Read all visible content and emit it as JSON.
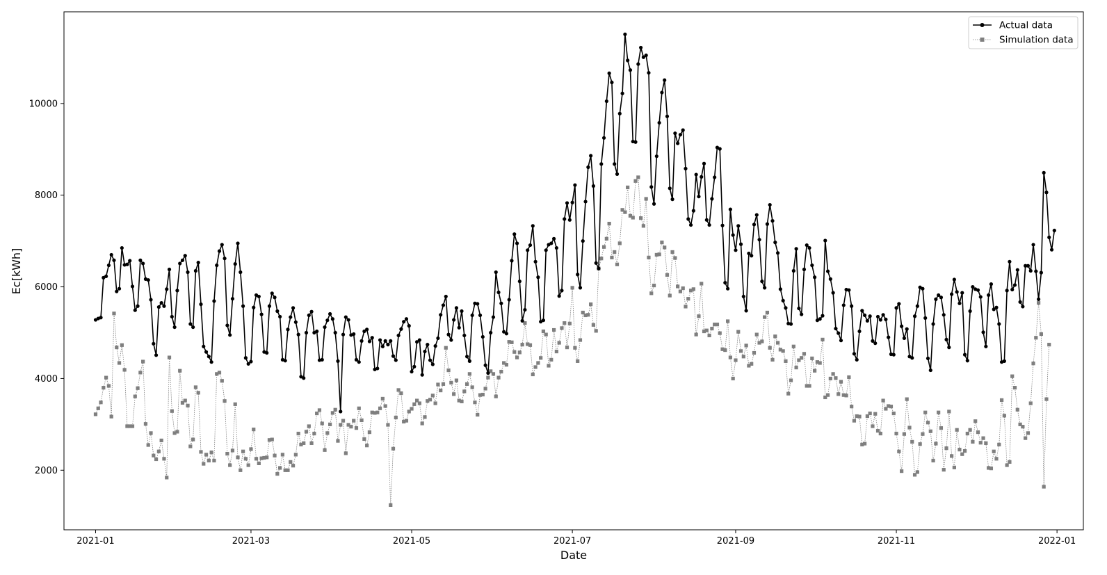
{
  "chart_data": {
    "type": "line",
    "title": "",
    "xlabel": "Date",
    "ylabel": "Ec[kWh]",
    "xlim": [
      "2020-12-20",
      "2022-01-11"
    ],
    "ylim": [
      700,
      12000
    ],
    "x_start": "2021-01-01",
    "x_step": "1 day",
    "x_ticks": [
      "2021-01",
      "2021-03",
      "2021-05",
      "2021-07",
      "2021-09",
      "2021-11",
      "2022-01"
    ],
    "y_ticks": [
      2000,
      4000,
      6000,
      8000,
      10000
    ],
    "grid": false,
    "legend": "top-right",
    "series": [
      {
        "name": "Actual data",
        "color": "#000000",
        "style": "solid",
        "marker": "circle",
        "values": [
          5280,
          5310,
          5330,
          6200,
          6230,
          6470,
          6700,
          6580,
          5900,
          5960,
          6850,
          6480,
          6490,
          6570,
          6010,
          5490,
          5580,
          6580,
          6510,
          6170,
          6150,
          5720,
          4760,
          4510,
          5560,
          5650,
          5580,
          5950,
          6380,
          5350,
          5120,
          5920,
          6510,
          6580,
          6680,
          6320,
          5190,
          5120,
          6350,
          6530,
          5620,
          4700,
          4580,
          4480,
          4360,
          5690,
          6470,
          6780,
          6920,
          6620,
          5160,
          4950,
          5740,
          6500,
          6950,
          6320,
          5580,
          4450,
          4320,
          4370,
          5550,
          5820,
          5790,
          5400,
          4580,
          4560,
          5580,
          5860,
          5770,
          5470,
          5350,
          4410,
          4390,
          5070,
          5340,
          5540,
          5230,
          4960,
          4040,
          4010,
          5000,
          5380,
          5460,
          5000,
          5030,
          4400,
          4410,
          5120,
          5270,
          5410,
          5300,
          5000,
          4380,
          3280,
          4960,
          5340,
          5280,
          4950,
          4970,
          4410,
          4360,
          4820,
          5030,
          5070,
          4810,
          4890,
          4200,
          4220,
          4840,
          4700,
          4820,
          4740,
          4820,
          4490,
          4400,
          4940,
          5080,
          5240,
          5300,
          5150,
          4150,
          4260,
          4800,
          4840,
          4080,
          4590,
          4740,
          4400,
          4310,
          4710,
          4880,
          5390,
          5600,
          5790,
          4960,
          4840,
          5280,
          5540,
          5110,
          5470,
          4940,
          4480,
          4380,
          5380,
          5640,
          5630,
          5380,
          4910,
          4290,
          4120,
          5000,
          5340,
          6320,
          5880,
          5640,
          5020,
          4980,
          5720,
          6570,
          7150,
          6950,
          6120,
          5260,
          5500,
          6800,
          6910,
          7330,
          6550,
          6210,
          5240,
          5270,
          6800,
          6920,
          6950,
          7050,
          6850,
          5800,
          5920,
          7480,
          7830,
          7460,
          7840,
          8220,
          6270,
          5980,
          7000,
          7860,
          8610,
          8860,
          8200,
          6520,
          6400,
          8680,
          9250,
          10050,
          10660,
          10460,
          8680,
          8460,
          9780,
          10220,
          11510,
          10940,
          10730,
          9170,
          9160,
          10860,
          11220,
          11010,
          11050,
          10670,
          8180,
          7810,
          8850,
          9580,
          10240,
          10510,
          9720,
          8150,
          7910,
          9350,
          9130,
          9320,
          9420,
          8580,
          7480,
          7350,
          7660,
          8450,
          7970,
          8400,
          8690,
          7460,
          7350,
          7920,
          8390,
          9040,
          9010,
          7340,
          6090,
          5960,
          7690,
          7130,
          6800,
          7330,
          6930,
          5790,
          5480,
          6730,
          6680,
          7360,
          7570,
          7030,
          6120,
          5980,
          7370,
          7790,
          7440,
          6970,
          6740,
          5950,
          5700,
          5540,
          5200,
          5190,
          6350,
          6830,
          5530,
          5400,
          6380,
          6910,
          6850,
          6470,
          6210,
          5270,
          5300,
          5370,
          7010,
          6340,
          6170,
          5870,
          5090,
          4990,
          4830,
          5600,
          5940,
          5930,
          5580,
          4540,
          4410,
          5030,
          5480,
          5380,
          5260,
          5360,
          4820,
          4770,
          5350,
          5280,
          5390,
          5290,
          4900,
          4530,
          4520,
          5540,
          5630,
          5140,
          4880,
          5080,
          4480,
          4450,
          5360,
          5580,
          5990,
          5960,
          5320,
          4440,
          4180,
          5190,
          5730,
          5820,
          5770,
          5390,
          4850,
          4680,
          5840,
          6160,
          5890,
          5640,
          5870,
          4520,
          4390,
          5470,
          6000,
          5950,
          5930,
          5780,
          5010,
          4700,
          5820,
          6060,
          5510,
          5550,
          5190,
          4360,
          4380,
          5920,
          6550,
          5940,
          6040,
          6370,
          5670,
          5570,
          6460,
          6460,
          6350,
          6920,
          6340,
          5730,
          6310,
          8490,
          8060,
          7080,
          6810,
          7230
        ]
      },
      {
        "name": "Simulation data",
        "color": "#7f7f7f",
        "style": "dotted",
        "marker": "square",
        "values": [
          3220,
          3350,
          3480,
          3800,
          4020,
          3840,
          3170,
          5420,
          4680,
          4340,
          4730,
          4190,
          2960,
          2960,
          2960,
          3610,
          3790,
          4130,
          4370,
          3010,
          2550,
          2810,
          2320,
          2240,
          2410,
          2650,
          2250,
          1840,
          4460,
          3290,
          2810,
          2840,
          4170,
          3470,
          3520,
          3410,
          2520,
          2670,
          3810,
          3690,
          2400,
          2140,
          2340,
          2210,
          2390,
          2210,
          4100,
          4130,
          3950,
          3510,
          2360,
          2110,
          2430,
          3440,
          2280,
          2000,
          2410,
          2250,
          2110,
          2460,
          2890,
          2250,
          2150,
          2260,
          2270,
          2280,
          2660,
          2670,
          2320,
          1920,
          2050,
          2340,
          2000,
          2000,
          2180,
          2100,
          2340,
          2800,
          2560,
          2590,
          2840,
          2960,
          2590,
          2800,
          3240,
          3310,
          3020,
          2440,
          2810,
          3000,
          3250,
          3320,
          2640,
          2990,
          3080,
          2370,
          2990,
          2950,
          3080,
          2920,
          3350,
          3090,
          2680,
          2540,
          2830,
          3260,
          3250,
          3260,
          3350,
          3560,
          3400,
          2990,
          1240,
          2470,
          3150,
          3750,
          3680,
          3060,
          3080,
          3280,
          3340,
          3440,
          3520,
          3460,
          3020,
          3160,
          3510,
          3540,
          3630,
          3460,
          3870,
          3740,
          3880,
          4670,
          4180,
          3910,
          3660,
          3960,
          3520,
          3500,
          3720,
          3880,
          4100,
          3810,
          3480,
          3210,
          3640,
          3650,
          3780,
          4020,
          4160,
          4100,
          3610,
          4020,
          4150,
          4340,
          4300,
          4800,
          4790,
          4580,
          4460,
          4570,
          4740,
          5210,
          4750,
          4730,
          4090,
          4250,
          4340,
          4450,
          5030,
          4960,
          4280,
          4410,
          5060,
          4590,
          4780,
          5100,
          5210,
          4680,
          5200,
          5980,
          4670,
          4380,
          4840,
          5440,
          5380,
          5390,
          5620,
          5170,
          5040,
          6400,
          6620,
          6870,
          7050,
          7380,
          6640,
          6760,
          6490,
          6950,
          7680,
          7630,
          8170,
          7550,
          7510,
          8310,
          8390,
          7500,
          7330,
          7920,
          6640,
          5860,
          6030,
          6700,
          6710,
          6970,
          6860,
          6260,
          5810,
          6760,
          6630,
          6010,
          5900,
          5970,
          5570,
          5740,
          5920,
          5950,
          4960,
          5360,
          6070,
          5030,
          5050,
          4940,
          5090,
          5180,
          5180,
          4990,
          4640,
          4620,
          5250,
          4460,
          4000,
          4400,
          5020,
          4600,
          4480,
          4720,
          4280,
          4320,
          4560,
          4960,
          4780,
          4810,
          5340,
          5440,
          4670,
          4410,
          4920,
          4780,
          4630,
          4600,
          4380,
          3670,
          3960,
          4700,
          4240,
          4400,
          4450,
          4540,
          3840,
          3840,
          4440,
          4170,
          4360,
          4340,
          4850,
          3590,
          3640,
          4000,
          4100,
          4010,
          3660,
          3930,
          3640,
          3630,
          4030,
          3390,
          3080,
          3180,
          3170,
          2560,
          2580,
          3180,
          3240,
          2960,
          3230,
          2860,
          2800,
          3520,
          3340,
          3400,
          3390,
          3240,
          2800,
          2410,
          1980,
          2790,
          3550,
          2930,
          2620,
          1900,
          1960,
          2570,
          2790,
          3260,
          3040,
          2850,
          2210,
          2580,
          3260,
          2920,
          2010,
          2480,
          3280,
          2310,
          2060,
          2880,
          2450,
          2350,
          2420,
          2800,
          2880,
          2620,
          3070,
          2830,
          2600,
          2700,
          2590,
          2050,
          2040,
          2410,
          2250,
          2560,
          3530,
          3190,
          2110,
          2180,
          4050,
          3800,
          3320,
          3000,
          2950,
          2700,
          2810,
          3460,
          4330,
          4890,
          5650,
          4970,
          1640,
          3550,
          4740
        ]
      }
    ]
  }
}
